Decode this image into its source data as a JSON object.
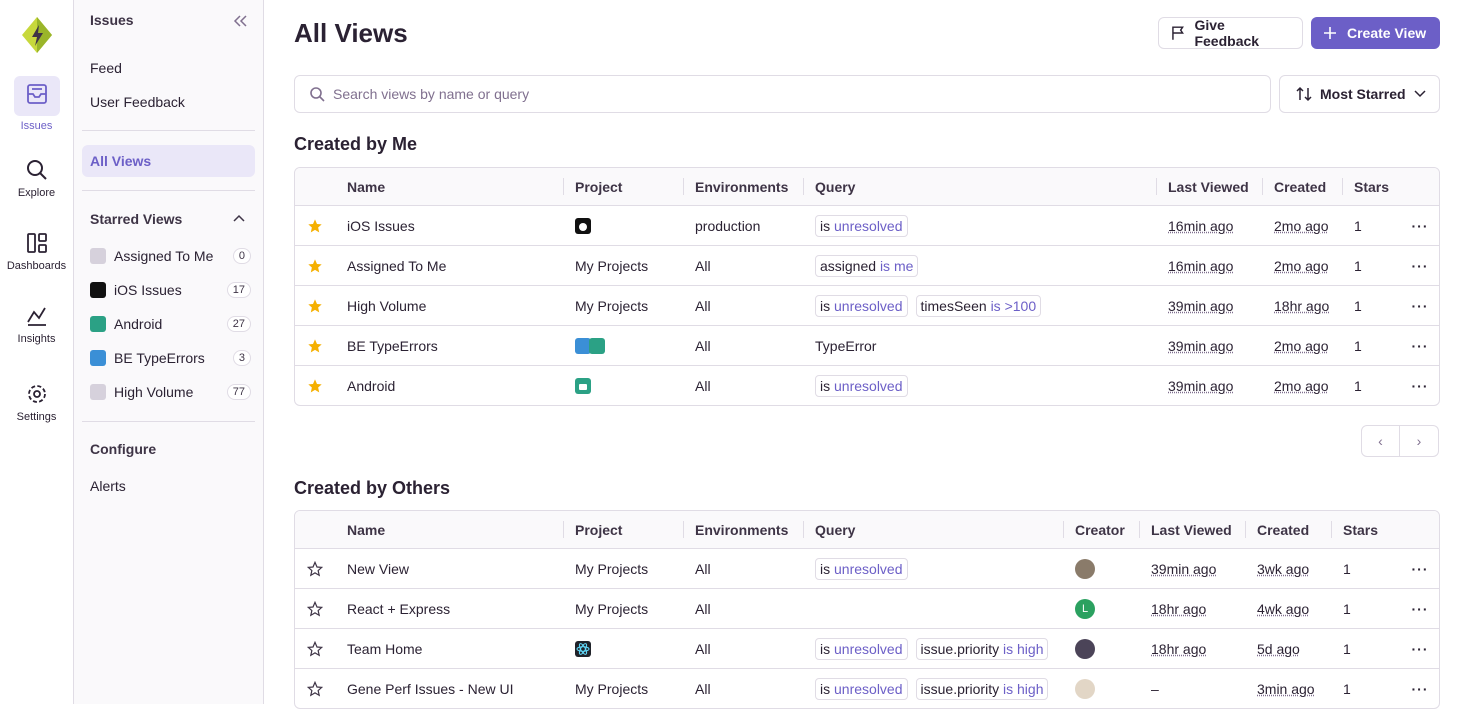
{
  "nav": {
    "items": [
      "Issues",
      "Explore",
      "Dashboards",
      "Insights",
      "Settings"
    ]
  },
  "sidebar": {
    "title": "Issues",
    "links": [
      "Feed",
      "User Feedback"
    ],
    "current": "All Views",
    "starred_title": "Starred Views",
    "starred": [
      {
        "name": "Assigned To Me",
        "count": 0
      },
      {
        "name": "iOS Issues",
        "count": 17
      },
      {
        "name": "Android",
        "count": 27
      },
      {
        "name": "BE TypeErrors",
        "count": 3
      },
      {
        "name": "High Volume",
        "count": 77
      }
    ],
    "configure_title": "Configure",
    "configure_links": [
      "Alerts"
    ]
  },
  "header": {
    "title": "All Views",
    "feedback_button": "Give Feedback",
    "create_button": "Create View"
  },
  "toolbar": {
    "search_placeholder": "Search views by name or query",
    "sort": "Most Starred"
  },
  "created_by_me": {
    "title": "Created by Me",
    "columns": [
      "Name",
      "Project",
      "Environments",
      "Query",
      "Last Viewed",
      "Created",
      "Stars"
    ],
    "rows": [
      {
        "name": "iOS Issues",
        "environment": "production",
        "query": [
          {
            "op": "is",
            "value": "unresolved"
          }
        ],
        "last_viewed": "16min ago",
        "created": "2mo ago",
        "stars": 1
      },
      {
        "name": "Assigned To Me",
        "project": "My Projects",
        "environment": "All",
        "query": [
          {
            "key": "assigned",
            "op": "is",
            "value": "me"
          }
        ],
        "last_viewed": "16min ago",
        "created": "2mo ago",
        "stars": 1
      },
      {
        "name": "High Volume",
        "project": "My Projects",
        "environment": "All",
        "query": [
          {
            "op": "is",
            "value": "unresolved"
          },
          {
            "key": "timesSeen",
            "op": "is",
            "value": ">100"
          }
        ],
        "last_viewed": "39min ago",
        "created": "18hr ago",
        "stars": 1
      },
      {
        "name": "BE TypeErrors",
        "environment": "All",
        "query": [
          "TypeError"
        ],
        "last_viewed": "39min ago",
        "created": "2mo ago",
        "stars": 1
      },
      {
        "name": "Android",
        "environment": "All",
        "query": [
          {
            "op": "is",
            "value": "unresolved"
          }
        ],
        "last_viewed": "39min ago",
        "created": "2mo ago",
        "stars": 1
      }
    ]
  },
  "created_by_others": {
    "title": "Created by Others",
    "columns": [
      "Name",
      "Project",
      "Environments",
      "Query",
      "Creator",
      "Last Viewed",
      "Created",
      "Stars"
    ],
    "rows": [
      {
        "name": "New View",
        "project": "My Projects",
        "environment": "All",
        "query": [
          {
            "op": "is",
            "value": "unresolved"
          }
        ],
        "last_viewed": "39min ago",
        "created": "3wk ago",
        "stars": 1
      },
      {
        "name": "React + Express",
        "project": "My Projects",
        "environment": "All",
        "creator": "L",
        "last_viewed": "18hr ago",
        "created": "4wk ago",
        "stars": 1
      },
      {
        "name": "Team Home",
        "environment": "All",
        "query": [
          {
            "op": "is",
            "value": "unresolved"
          },
          {
            "key": "issue.priority",
            "op": "is",
            "value": "high"
          }
        ],
        "last_viewed": "18hr ago",
        "created": "5d ago",
        "stars": 1
      },
      {
        "name": "Gene Perf Issues - New UI",
        "project": "My Projects",
        "environment": "All",
        "query": [
          {
            "op": "is",
            "value": "unresolved"
          },
          {
            "key": "issue.priority",
            "op": "is",
            "value": "high"
          }
        ],
        "last_viewed": "–",
        "created": "3min ago",
        "stars": 1
      }
    ]
  }
}
